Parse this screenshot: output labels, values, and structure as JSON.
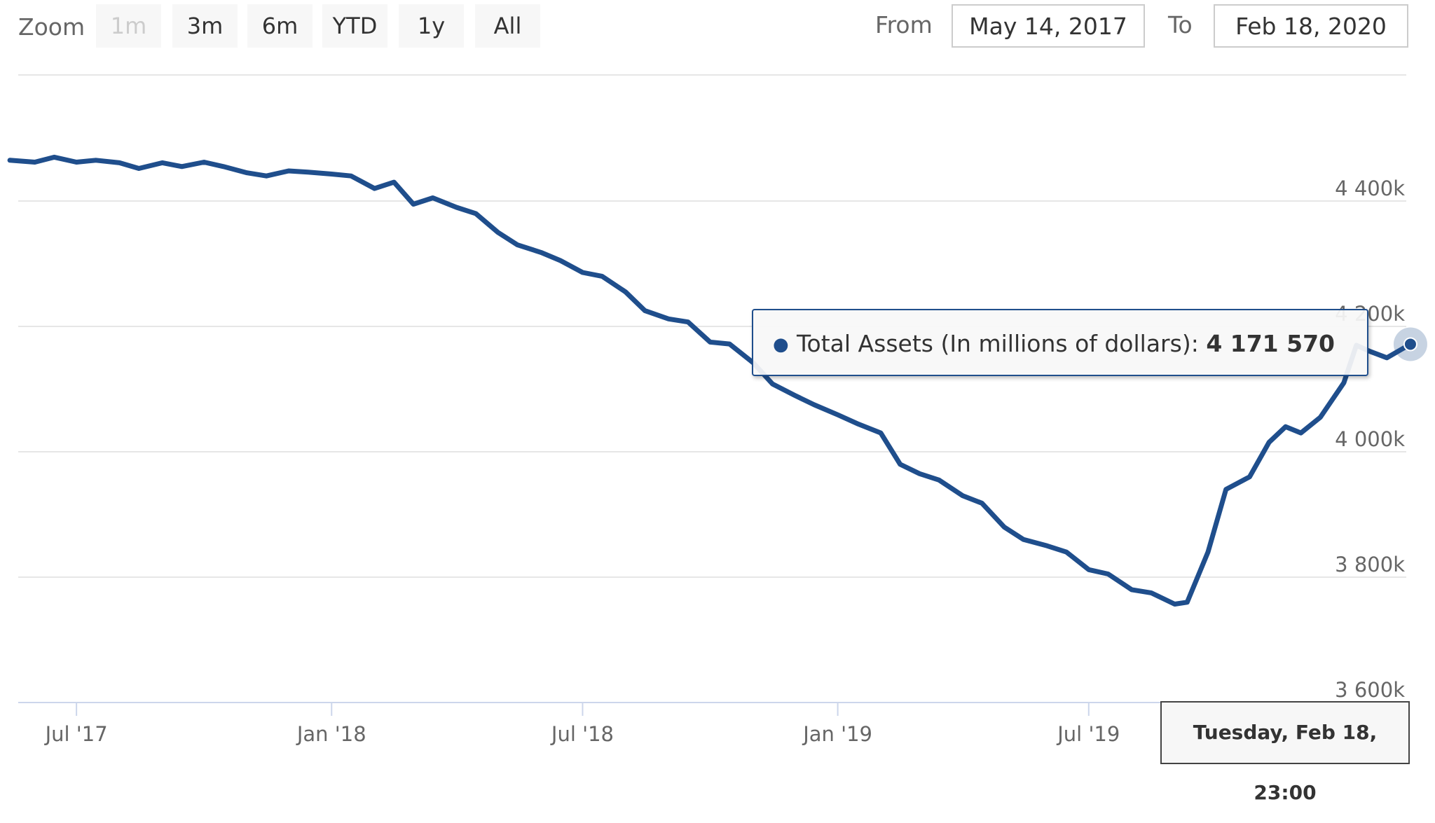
{
  "zoom": {
    "label": "Zoom",
    "buttons": [
      {
        "label": "1m",
        "disabled": true
      },
      {
        "label": "3m",
        "disabled": false
      },
      {
        "label": "6m",
        "disabled": false
      },
      {
        "label": "YTD",
        "disabled": false
      },
      {
        "label": "1y",
        "disabled": false
      },
      {
        "label": "All",
        "disabled": false
      }
    ]
  },
  "range": {
    "from_label": "From",
    "from_value": "May 14, 2017",
    "to_label": "To",
    "to_value": "Feb 18, 2020"
  },
  "tooltip": {
    "series_label": "Total Assets (In millions of dollars):",
    "value": "4 171 570",
    "date": "Tuesday, Feb 18, 23:00"
  },
  "colors": {
    "line": "#1f4e8c",
    "grid": "#e6e6e6",
    "button_bg": "#f7f7f7"
  },
  "chart_data": {
    "type": "line",
    "series": [
      {
        "name": "Total Assets (In millions of dollars)",
        "points": [
          [
            "2017-05-14",
            4465
          ],
          [
            "2017-06-01",
            4462
          ],
          [
            "2017-06-15",
            4470
          ],
          [
            "2017-07-01",
            4462
          ],
          [
            "2017-07-15",
            4465
          ],
          [
            "2017-08-01",
            4461
          ],
          [
            "2017-08-15",
            4452
          ],
          [
            "2017-09-01",
            4461
          ],
          [
            "2017-09-15",
            4455
          ],
          [
            "2017-10-01",
            4462
          ],
          [
            "2017-10-15",
            4455
          ],
          [
            "2017-11-01",
            4445
          ],
          [
            "2017-11-15",
            4440
          ],
          [
            "2017-12-01",
            4448
          ],
          [
            "2017-12-15",
            4446
          ],
          [
            "2018-01-01",
            4443
          ],
          [
            "2018-01-15",
            4440
          ],
          [
            "2018-02-01",
            4420
          ],
          [
            "2018-02-15",
            4430
          ],
          [
            "2018-03-01",
            4395
          ],
          [
            "2018-03-15",
            4405
          ],
          [
            "2018-04-01",
            4390
          ],
          [
            "2018-04-15",
            4380
          ],
          [
            "2018-05-01",
            4350
          ],
          [
            "2018-05-15",
            4330
          ],
          [
            "2018-06-01",
            4318
          ],
          [
            "2018-06-15",
            4305
          ],
          [
            "2018-07-01",
            4286
          ],
          [
            "2018-07-15",
            4280
          ],
          [
            "2018-08-01",
            4255
          ],
          [
            "2018-08-15",
            4225
          ],
          [
            "2018-09-01",
            4212
          ],
          [
            "2018-09-15",
            4207
          ],
          [
            "2018-10-01",
            4175
          ],
          [
            "2018-10-15",
            4172
          ],
          [
            "2018-11-01",
            4142
          ],
          [
            "2018-11-15",
            4108
          ],
          [
            "2018-12-01",
            4090
          ],
          [
            "2018-12-15",
            4075
          ],
          [
            "2019-01-01",
            4059
          ],
          [
            "2019-01-15",
            4045
          ],
          [
            "2019-02-01",
            4030
          ],
          [
            "2019-02-15",
            3980
          ],
          [
            "2019-03-01",
            3965
          ],
          [
            "2019-03-15",
            3955
          ],
          [
            "2019-04-01",
            3930
          ],
          [
            "2019-04-15",
            3918
          ],
          [
            "2019-05-01",
            3880
          ],
          [
            "2019-05-15",
            3860
          ],
          [
            "2019-06-01",
            3850
          ],
          [
            "2019-06-15",
            3840
          ],
          [
            "2019-07-01",
            3812
          ],
          [
            "2019-07-15",
            3805
          ],
          [
            "2019-08-01",
            3780
          ],
          [
            "2019-08-15",
            3775
          ],
          [
            "2019-09-01",
            3757
          ],
          [
            "2019-09-10",
            3760
          ],
          [
            "2019-09-25",
            3840
          ],
          [
            "2019-10-08",
            3940
          ],
          [
            "2019-10-25",
            3960
          ],
          [
            "2019-11-08",
            4015
          ],
          [
            "2019-11-20",
            4040
          ],
          [
            "2019-12-01",
            4030
          ],
          [
            "2019-12-15",
            4055
          ],
          [
            "2020-01-01",
            4110
          ],
          [
            "2020-01-10",
            4170
          ],
          [
            "2020-01-20",
            4160
          ],
          [
            "2020-02-01",
            4150
          ],
          [
            "2020-02-18",
            4171.57
          ]
        ]
      }
    ],
    "y_axis": {
      "ticks": [
        3600,
        3800,
        4000,
        4200,
        4400
      ],
      "tick_labels": [
        "3 600k",
        "3 800k",
        "4 000k",
        "4 200k",
        "4 400k"
      ],
      "range": [
        3600,
        4600
      ]
    },
    "x_axis": {
      "ticks": [
        {
          "date": "2017-07-01",
          "label": "Jul '17"
        },
        {
          "date": "2018-01-01",
          "label": "Jan '18"
        },
        {
          "date": "2018-07-01",
          "label": "Jul '18"
        },
        {
          "date": "2019-01-01",
          "label": "Jan '19"
        },
        {
          "date": "2019-07-01",
          "label": "Jul '19"
        }
      ],
      "range": [
        "2017-05-14",
        "2020-02-18"
      ]
    },
    "grid": true
  }
}
